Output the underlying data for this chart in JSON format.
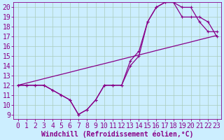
{
  "xlabel": "Windchill (Refroidissement éolien,°C)",
  "bg_color": "#cceeff",
  "grid_color": "#aaccbb",
  "line_color": "#880088",
  "marker": "+",
  "xlim": [
    -0.5,
    23.5
  ],
  "ylim": [
    8.5,
    20.5
  ],
  "xticks": [
    0,
    1,
    2,
    3,
    4,
    5,
    6,
    7,
    8,
    9,
    10,
    11,
    12,
    13,
    14,
    15,
    16,
    17,
    18,
    19,
    20,
    21,
    22,
    23
  ],
  "yticks": [
    9,
    10,
    11,
    12,
    13,
    14,
    15,
    16,
    17,
    18,
    19,
    20
  ],
  "line1_x": [
    0,
    1,
    2,
    3,
    4,
    5,
    6,
    7,
    8,
    9,
    10,
    11,
    12,
    13,
    14,
    15,
    16,
    17,
    18,
    19,
    20,
    21,
    22,
    23
  ],
  "line1_y": [
    12,
    12,
    12,
    12,
    11.5,
    11,
    10.5,
    9,
    9.5,
    10.5,
    12,
    12,
    12,
    14,
    15,
    18.5,
    20,
    20.5,
    20.5,
    20,
    20,
    18.5,
    17.5,
    17.5
  ],
  "line2_x": [
    0,
    1,
    2,
    3,
    4,
    5,
    6,
    7,
    8,
    9,
    10,
    11,
    12,
    13,
    14,
    15,
    16,
    17,
    18,
    19,
    20,
    21,
    22,
    23
  ],
  "line2_y": [
    12,
    12,
    12,
    12,
    11.5,
    11,
    10.5,
    9,
    9.5,
    10.5,
    12,
    12,
    12,
    14.5,
    15.5,
    18.5,
    20,
    20.5,
    20.5,
    19,
    19,
    19,
    18.5,
    17
  ],
  "line3_x": [
    0,
    1,
    2,
    3,
    4,
    5,
    6,
    7,
    8,
    9,
    10,
    11,
    12,
    13,
    14,
    15,
    16,
    17,
    18,
    19,
    20,
    21,
    22,
    23
  ],
  "line3_y": [
    12,
    12.22,
    12.44,
    12.67,
    12.89,
    13.11,
    13.33,
    13.56,
    13.78,
    14.0,
    14.22,
    14.44,
    14.67,
    14.89,
    15.11,
    15.33,
    15.56,
    15.78,
    16.0,
    16.22,
    16.44,
    16.67,
    16.89,
    17.11
  ],
  "font_size": 7,
  "lw": 0.9,
  "ms": 3.5
}
